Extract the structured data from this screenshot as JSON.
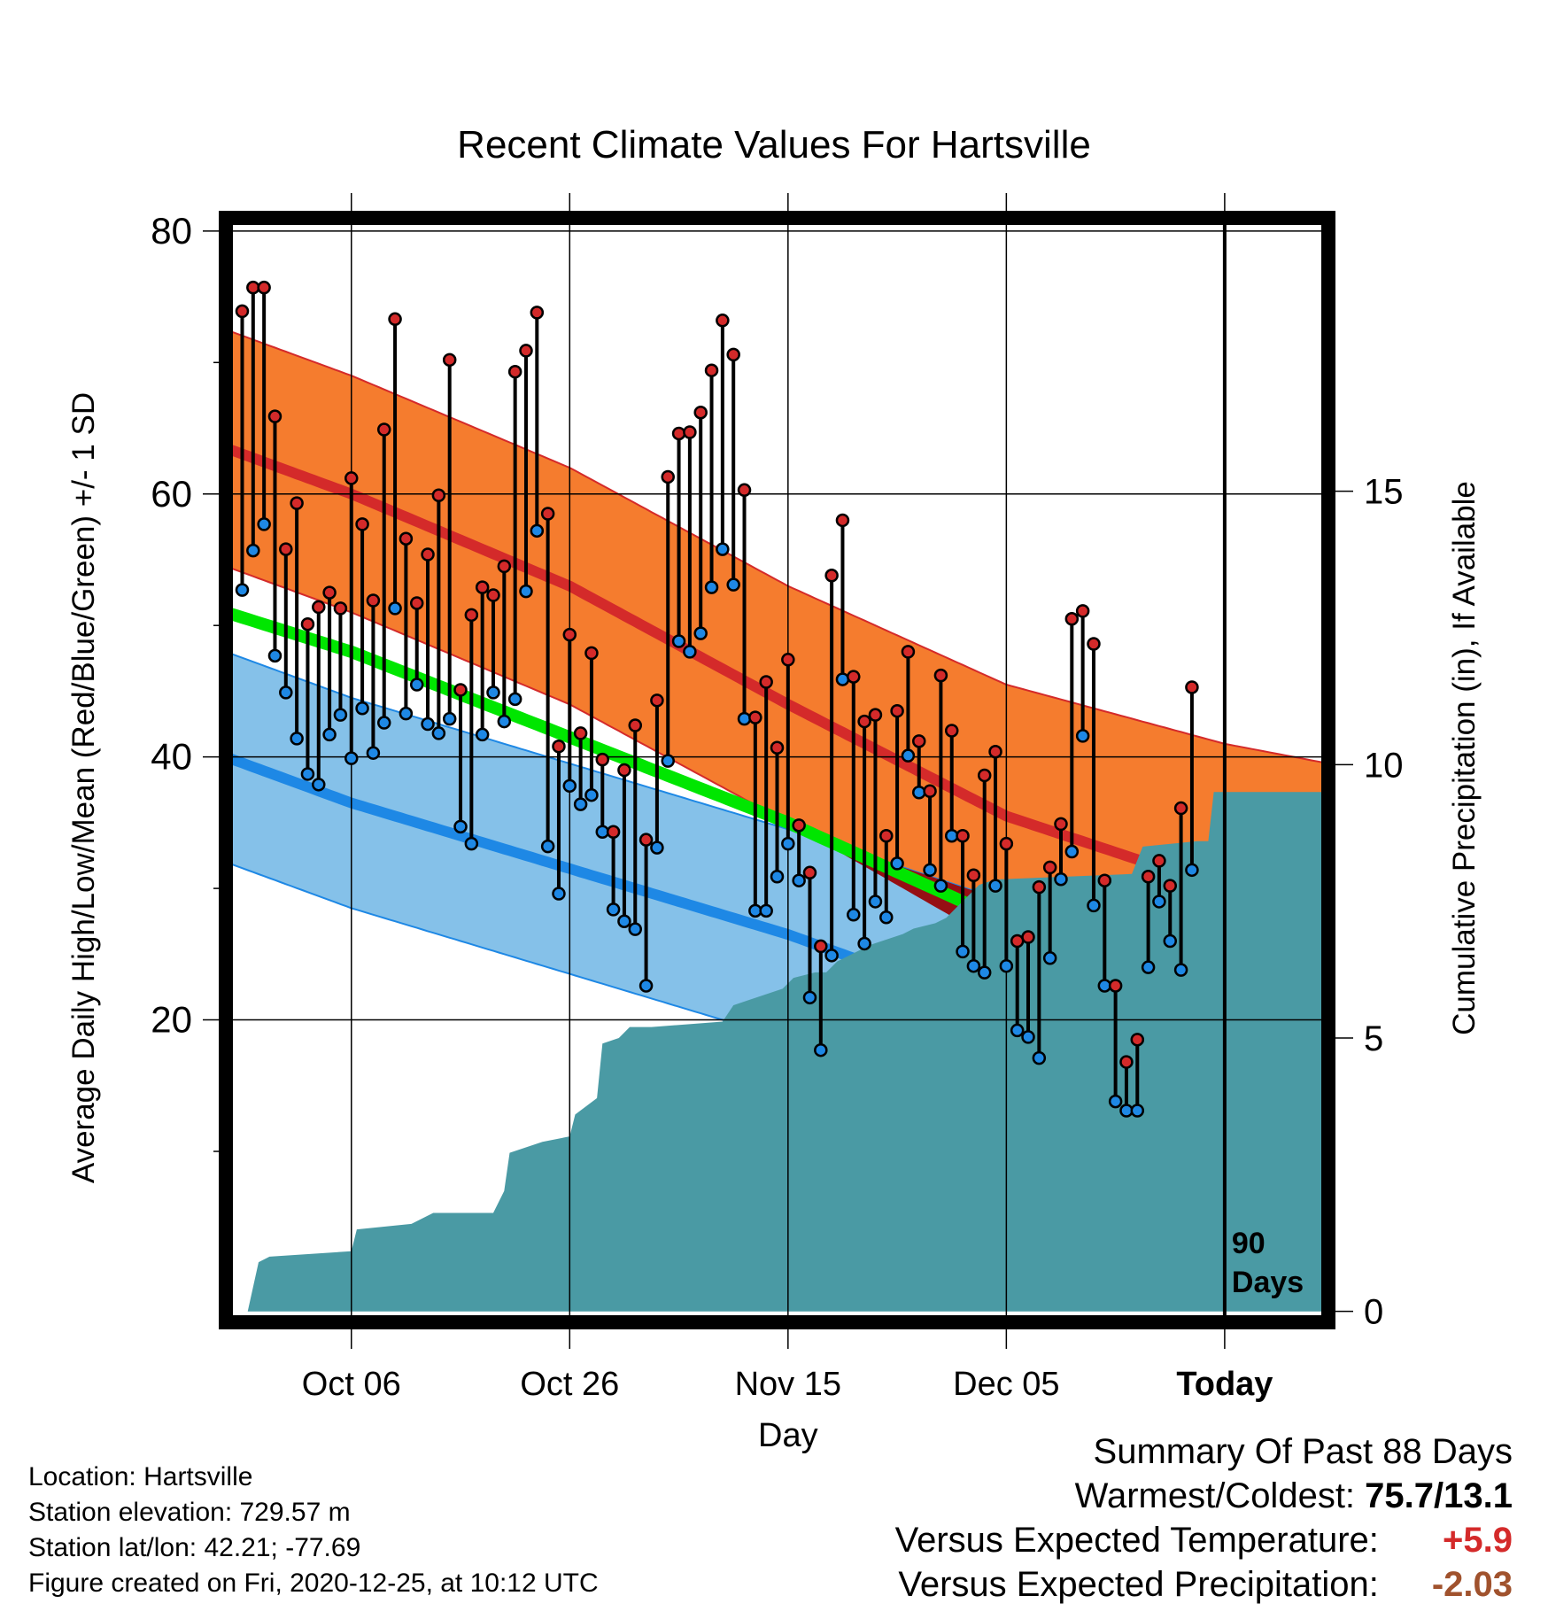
{
  "chart_data": {
    "type": "line",
    "title": "Recent Climate Values For Hartsville",
    "xlabel": "Day",
    "ylabel": "Average Daily High/Low/Mean (Red/Blue/Green) +/- 1 SD",
    "y2label": "Cumulative Precipitation (in), If Available",
    "xticks": [
      "Oct 06",
      "Oct 26",
      "Nov 15",
      "Dec 05",
      "Today"
    ],
    "xtick_days": [
      -80,
      -60,
      -40,
      -20,
      0
    ],
    "xlim": [
      -91.5,
      9.5
    ],
    "ylim": [
      -3,
      81
    ],
    "y2lim": [
      -0.2,
      20
    ],
    "yticks": [
      20,
      40,
      60,
      80
    ],
    "y2ticks": [
      0,
      5,
      10,
      15
    ],
    "grid": true,
    "today_marker_label": "90 Days",
    "normals": {
      "days": [
        -91.5,
        -80,
        -60,
        -40,
        -20,
        0,
        9.5
      ],
      "high": [
        63.5,
        60.0,
        53.0,
        44.0,
        35.5,
        30.0,
        28.5
      ],
      "high_sd": [
        9.0,
        9.0,
        9.0,
        9.0,
        10.0,
        11.0,
        11.0
      ],
      "low": [
        40.0,
        36.5,
        31.5,
        26.5,
        20.5,
        15.5,
        14.5
      ],
      "low_sd": [
        8.0,
        8.0,
        8.0,
        8.0,
        8.5,
        9.0,
        9.0
      ],
      "mean": [
        51.0,
        48.0,
        41.5,
        35.0,
        27.5,
        21.5,
        19.5
      ]
    },
    "series": [
      {
        "name": "High",
        "color": "#d42a2a",
        "days": [
          -90,
          -89,
          -88,
          -87,
          -86,
          -85,
          -84,
          -83,
          -82,
          -81,
          -80,
          -79,
          -78,
          -77,
          -76,
          -75,
          -74,
          -73,
          -72,
          -71,
          -70,
          -69,
          -68,
          -67,
          -66,
          -65,
          -64,
          -63,
          -62,
          -61,
          -60,
          -59,
          -58,
          -57,
          -56,
          -55,
          -54,
          -53,
          -52,
          -51,
          -50,
          -49,
          -48,
          -47,
          -46,
          -45,
          -44,
          -43,
          -42,
          -41,
          -40,
          -39,
          -38,
          -37,
          -36,
          -35,
          -34,
          -33,
          -32,
          -31,
          -30,
          -29,
          -28,
          -27,
          -26,
          -25,
          -24,
          -23,
          -22,
          -21,
          -20,
          -19,
          -18,
          -17,
          -16,
          -15,
          -14,
          -13,
          -12,
          -11,
          -10,
          -9,
          -8,
          -7,
          -6,
          -5,
          -4,
          -3
        ],
        "values": [
          73.9,
          75.7,
          75.7,
          65.9,
          55.8,
          59.3,
          50.1,
          51.4,
          52.5,
          51.3,
          61.2,
          57.7,
          51.9,
          64.9,
          73.3,
          56.6,
          51.7,
          55.4,
          59.9,
          70.2,
          45.1,
          50.8,
          52.9,
          52.3,
          54.5,
          69.3,
          70.9,
          73.8,
          58.5,
          40.8,
          49.3,
          41.8,
          47.9,
          39.8,
          34.3,
          39.0,
          42.4,
          33.7,
          44.3,
          61.3,
          64.6,
          64.7,
          66.2,
          69.4,
          73.2,
          70.6,
          60.3,
          43.0,
          45.7,
          40.7,
          47.4,
          34.8,
          31.2,
          25.6,
          53.8,
          58.0,
          46.1,
          42.7,
          43.2,
          34.0,
          43.5,
          48.0,
          41.2,
          37.4,
          46.2,
          42.0,
          34.0,
          31.0,
          38.6,
          40.4,
          33.4,
          26.0,
          26.3,
          30.1,
          31.6,
          34.9,
          50.5,
          51.1,
          48.6,
          30.6,
          22.6,
          16.8,
          18.5,
          30.9,
          32.1,
          30.2,
          36.1,
          45.3
        ]
      },
      {
        "name": "Low",
        "color": "#1e88e5",
        "days": [
          -90,
          -89,
          -88,
          -87,
          -86,
          -85,
          -84,
          -83,
          -82,
          -81,
          -80,
          -79,
          -78,
          -77,
          -76,
          -75,
          -74,
          -73,
          -72,
          -71,
          -70,
          -69,
          -68,
          -67,
          -66,
          -65,
          -64,
          -63,
          -62,
          -61,
          -60,
          -59,
          -58,
          -57,
          -56,
          -55,
          -54,
          -53,
          -52,
          -51,
          -50,
          -49,
          -48,
          -47,
          -46,
          -45,
          -44,
          -43,
          -42,
          -41,
          -40,
          -39,
          -38,
          -37,
          -36,
          -35,
          -34,
          -33,
          -32,
          -31,
          -30,
          -29,
          -28,
          -27,
          -26,
          -25,
          -24,
          -23,
          -22,
          -21,
          -20,
          -19,
          -18,
          -17,
          -16,
          -15,
          -14,
          -13,
          -12,
          -11,
          -10,
          -9,
          -8,
          -7,
          -6,
          -5,
          -4,
          -3
        ],
        "values": [
          52.7,
          55.7,
          57.7,
          47.7,
          44.9,
          41.4,
          38.7,
          37.9,
          41.7,
          43.2,
          39.9,
          43.7,
          40.3,
          42.6,
          51.3,
          43.3,
          45.5,
          42.5,
          41.8,
          42.9,
          34.7,
          33.4,
          41.7,
          44.9,
          42.7,
          44.4,
          52.6,
          57.2,
          33.2,
          29.6,
          37.8,
          36.4,
          37.1,
          34.3,
          28.4,
          27.5,
          26.9,
          22.6,
          33.1,
          39.7,
          48.8,
          48.0,
          49.4,
          52.9,
          55.8,
          53.1,
          42.9,
          28.3,
          28.3,
          30.9,
          33.4,
          30.6,
          21.7,
          17.7,
          24.9,
          45.9,
          28.0,
          25.8,
          29.0,
          27.8,
          31.9,
          40.1,
          37.3,
          31.4,
          30.2,
          34.0,
          25.2,
          24.1,
          23.6,
          30.2,
          24.1,
          19.2,
          18.7,
          17.1,
          24.7,
          30.7,
          32.8,
          41.6,
          28.7,
          22.6,
          13.8,
          13.1,
          13.1,
          24.0,
          29.0,
          26.0,
          23.8,
          31.4
        ]
      }
    ],
    "precip": {
      "days": [
        -91.5,
        -89.5,
        -88.5,
        -87.5,
        -80,
        -79.5,
        -74.5,
        -72.5,
        -67,
        -66,
        -65.5,
        -62.5,
        -60,
        -59.5,
        -57.5,
        -57,
        -55.5,
        -54.5,
        -52.5,
        -46,
        -45,
        -43.5,
        -40.5,
        -39.5,
        -37.5,
        -36.5,
        -35.5,
        -33.5,
        -32.5,
        -29.5,
        -28.5,
        -26.5,
        -25.5,
        -24.5,
        -23.5,
        -22.5,
        -21,
        -8.5,
        -7.5,
        -2.5,
        -1.5,
        -1,
        9.5
      ],
      "values": [
        0,
        0,
        0.9,
        1.0,
        1.1,
        1.5,
        1.6,
        1.8,
        1.8,
        2.2,
        2.9,
        3.1,
        3.2,
        3.6,
        3.9,
        4.9,
        5.0,
        5.2,
        5.2,
        5.3,
        5.6,
        5.7,
        5.9,
        6.1,
        6.2,
        6.2,
        6.4,
        6.6,
        6.7,
        6.9,
        7.0,
        7.1,
        7.2,
        7.4,
        7.6,
        7.8,
        7.9,
        8.0,
        8.5,
        8.6,
        8.6,
        9.5,
        9.5
      ]
    }
  },
  "info": {
    "location": "Location: Hartsville",
    "elevation": "Station elevation: 729.57 m",
    "latlon": "Station lat/lon: 42.21; -77.69",
    "created": "Figure created on Fri, 2020-12-25, at 10:12 UTC"
  },
  "summary": {
    "heading": "Summary Of Past 88 Days",
    "warmest_label": "Warmest/Coldest:",
    "warmest_value": "75.7/13.1",
    "temp_label": "Versus Expected Temperature:",
    "temp_value": "+5.9",
    "precip_label": "Versus Expected Precipitation:",
    "precip_value": "-2.03"
  },
  "colors": {
    "high_band": "#f57c2e",
    "high_line": "#d42a2a",
    "low_band": "#85c1e9",
    "low_line": "#1e88e5",
    "mean_line": "#00e600",
    "overlap_band": "#960f14",
    "precip_fill": "#4a9aa4"
  }
}
